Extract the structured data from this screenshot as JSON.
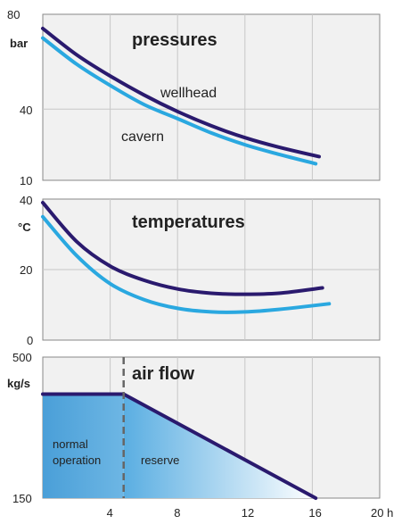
{
  "chart_data": [
    {
      "type": "line",
      "title": "pressures",
      "ylabel": "bar",
      "xlim": [
        0,
        20
      ],
      "ylim": [
        10,
        80
      ],
      "yticks": [
        "10",
        "40",
        "80"
      ],
      "ytick_values": [
        10,
        40,
        80
      ],
      "grid": true,
      "series": [
        {
          "name": "wellhead",
          "color": "#2a1a6e",
          "x": [
            0,
            2,
            4,
            6,
            8,
            10,
            12,
            14,
            16.4
          ],
          "y": [
            74,
            63,
            54,
            46,
            39,
            33,
            28,
            24,
            20
          ]
        },
        {
          "name": "cavern",
          "color": "#2aa8e0",
          "x": [
            0,
            2,
            4,
            6,
            8,
            10,
            12,
            14,
            16.2
          ],
          "y": [
            70,
            59,
            50,
            42,
            36,
            30,
            25,
            21,
            17
          ]
        }
      ]
    },
    {
      "type": "line",
      "title": "temperatures",
      "ylabel": "°C",
      "xlim": [
        0,
        20
      ],
      "ylim": [
        0,
        40
      ],
      "yticks": [
        "0",
        "20",
        "40"
      ],
      "ytick_values": [
        0,
        20,
        40
      ],
      "grid": true,
      "series": [
        {
          "color": "#2a1a6e",
          "x": [
            0,
            2,
            4,
            6,
            8,
            10,
            12,
            14,
            16.6
          ],
          "y": [
            39,
            28,
            21,
            17,
            14.5,
            13.3,
            13,
            13.3,
            14.8
          ]
        },
        {
          "color": "#2aa8e0",
          "x": [
            0,
            2,
            4,
            6,
            8,
            10,
            12,
            14,
            17
          ],
          "y": [
            35,
            24,
            16,
            11.5,
            9,
            8,
            8,
            8.7,
            10.3
          ]
        }
      ]
    },
    {
      "type": "area",
      "title": "air flow",
      "ylabel": "kg/s",
      "xlim": [
        0,
        20
      ],
      "ylim": [
        150,
        500
      ],
      "yticks": [
        "150",
        "500"
      ],
      "ytick_values": [
        150,
        500
      ],
      "xticks": [
        "4",
        "8",
        "12",
        "16",
        "20 h"
      ],
      "xtick_values": [
        4,
        8,
        12,
        16,
        20
      ],
      "grid": true,
      "series": [
        {
          "color": "#2a1a6e",
          "x": [
            0,
            4.8,
            16.2
          ],
          "y": [
            408,
            408,
            150
          ]
        }
      ],
      "annotations": [
        {
          "text": "normal operation",
          "line1": "normal",
          "line2": "operation",
          "x": 2.4,
          "y": 270
        },
        {
          "text": "reserve",
          "x": 8.8,
          "y": 255
        }
      ],
      "divider_x": 4.8
    }
  ]
}
